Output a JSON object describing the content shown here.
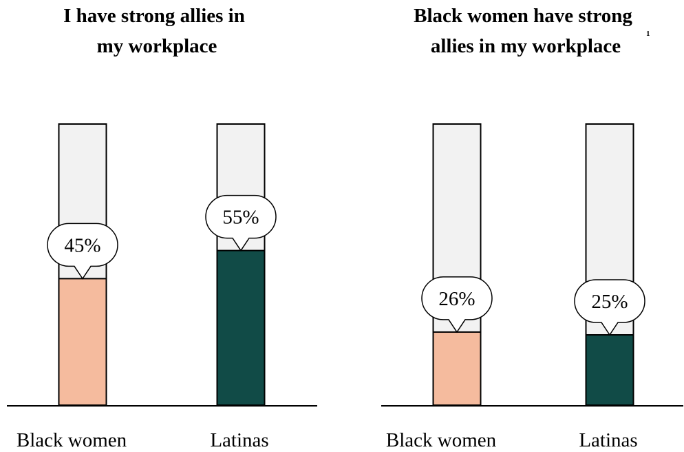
{
  "chart_data": [
    {
      "type": "bar",
      "title_lines": [
        "I have strong allies in",
        "my workplace"
      ],
      "footnote": "",
      "categories": [
        "Black women",
        "Latinas"
      ],
      "values": [
        45,
        55
      ],
      "value_labels": [
        "45%",
        "55%"
      ],
      "ylim": [
        0,
        100
      ],
      "grid": false,
      "colors": {
        "Black women": "#f5bb9e",
        "Latinas": "#114b47",
        "background_bar": "#f2f2f2",
        "outline": "#000000"
      }
    },
    {
      "type": "bar",
      "title_lines": [
        "Black women have strong",
        "allies in my workplace"
      ],
      "footnote": "1",
      "categories": [
        "Black women",
        "Latinas"
      ],
      "values": [
        26,
        25
      ],
      "value_labels": [
        "26%",
        "25%"
      ],
      "ylim": [
        0,
        100
      ],
      "grid": false,
      "colors": {
        "Black women": "#f5bb9e",
        "Latinas": "#114b47",
        "background_bar": "#f2f2f2",
        "outline": "#000000"
      }
    }
  ]
}
